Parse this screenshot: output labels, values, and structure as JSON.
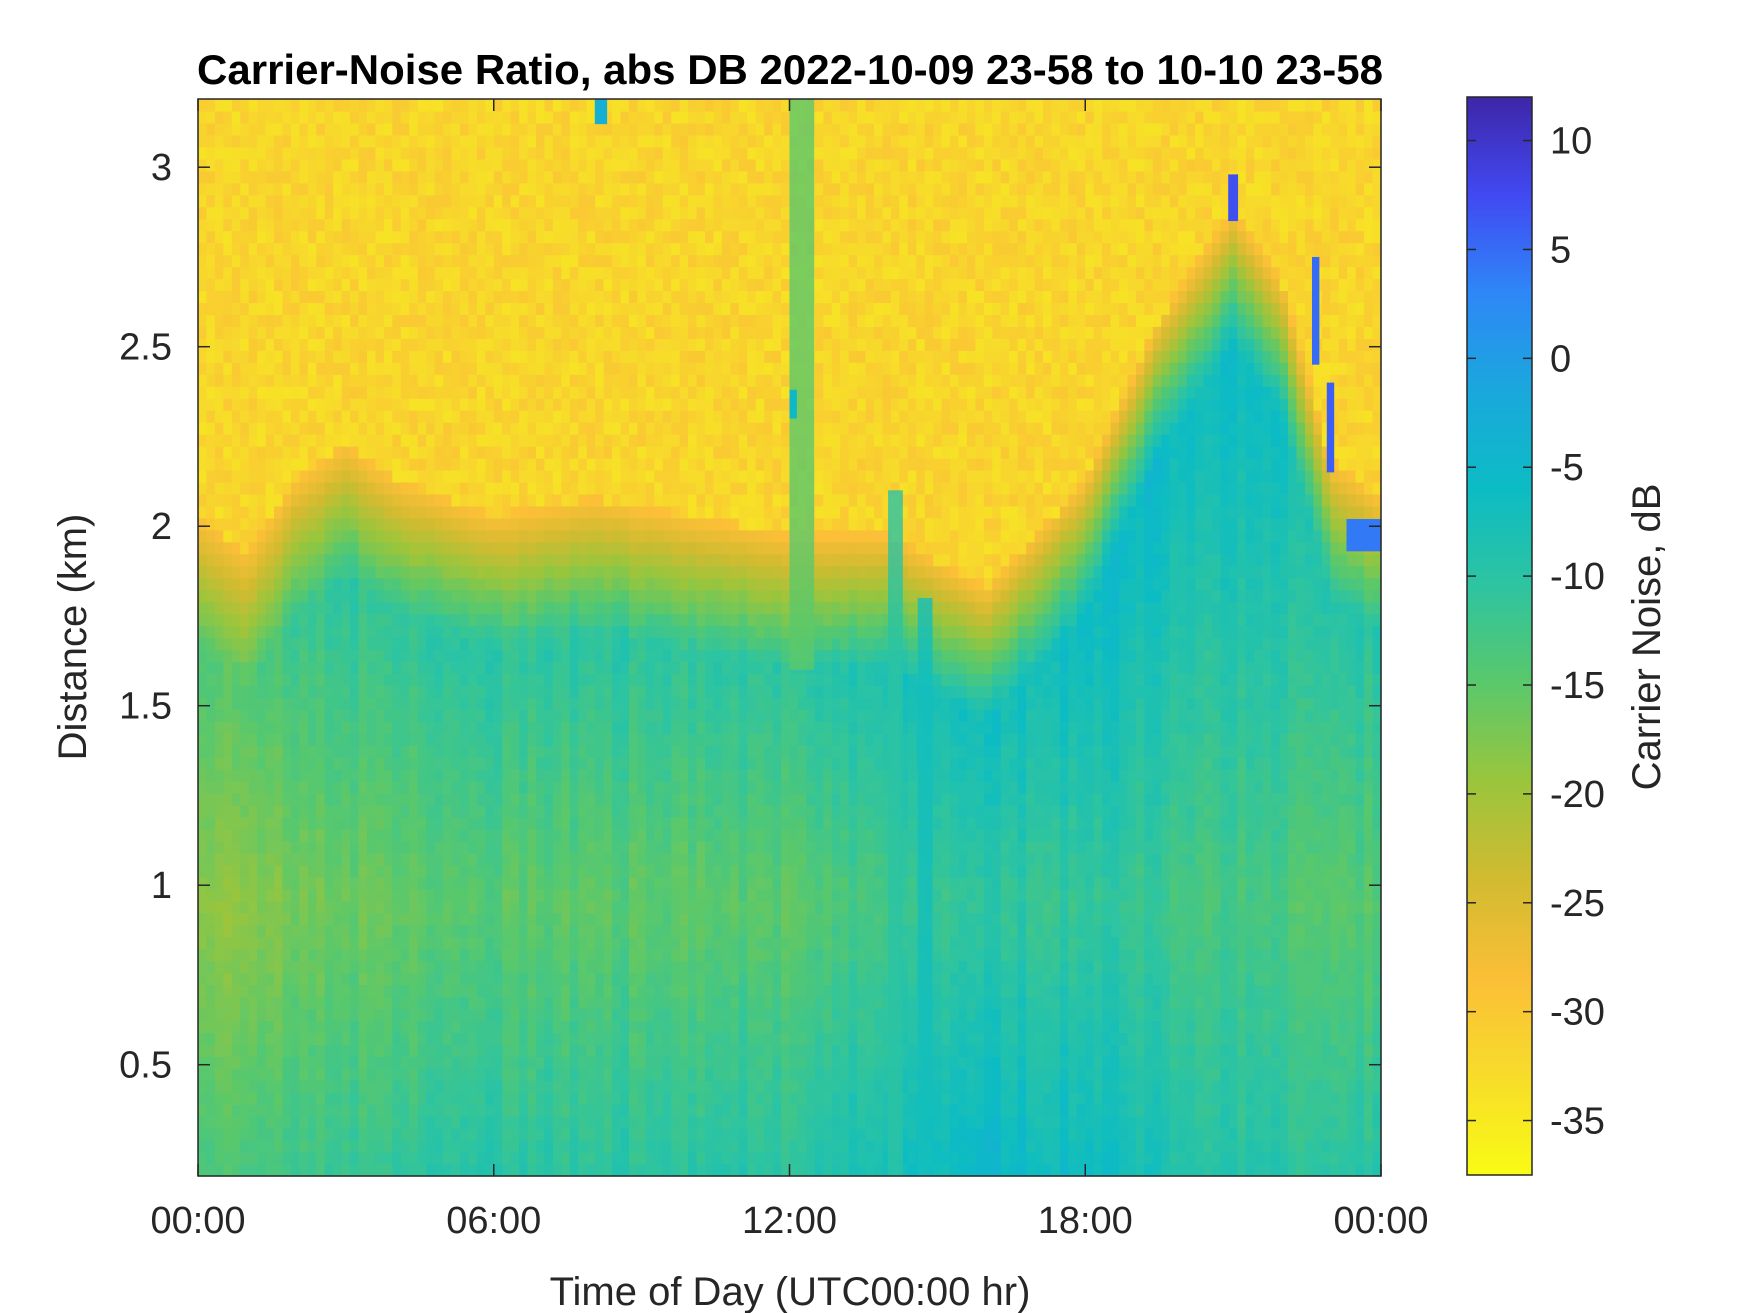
{
  "chart_data": {
    "type": "heatmap",
    "title": "Carrier-Noise Ratio, abs DB 2022-10-09 23-58 to 10-10 23-58",
    "xlabel": "Time of Day (UTC00:00 hr)",
    "ylabel": "Distance (km)",
    "colorbar_label": "Carrier Noise, dB",
    "xlim_hours": [
      0,
      24
    ],
    "ylim_km": [
      0.19,
      3.19
    ],
    "clim_db": [
      -37.5,
      12
    ],
    "x_ticks": [
      {
        "value": 0,
        "label": "00:00"
      },
      {
        "value": 6,
        "label": "06:00"
      },
      {
        "value": 12,
        "label": "12:00"
      },
      {
        "value": 18,
        "label": "18:00"
      },
      {
        "value": 24,
        "label": "00:00"
      }
    ],
    "y_ticks": [
      {
        "value": 0.5,
        "label": "0.5"
      },
      {
        "value": 1,
        "label": "1"
      },
      {
        "value": 1.5,
        "label": "1.5"
      },
      {
        "value": 2,
        "label": "2"
      },
      {
        "value": 2.5,
        "label": "2.5"
      },
      {
        "value": 3,
        "label": "3"
      }
    ],
    "colorbar_ticks": [
      {
        "value": 10,
        "label": "10"
      },
      {
        "value": 5,
        "label": "5"
      },
      {
        "value": 0,
        "label": "0"
      },
      {
        "value": -5,
        "label": "-5"
      },
      {
        "value": -10,
        "label": "-10"
      },
      {
        "value": -15,
        "label": "-15"
      },
      {
        "value": -20,
        "label": "-20"
      },
      {
        "value": -25,
        "label": "-25"
      },
      {
        "value": -30,
        "label": "-30"
      },
      {
        "value": -35,
        "label": "-35"
      }
    ],
    "colormap": [
      "#3e26a8",
      "#4149f2",
      "#2e87f7",
      "#1aa8dc",
      "#0cbcc4",
      "#2ec4a0",
      "#5bc86a",
      "#9bc53c",
      "#d2bb30",
      "#fbbf37",
      "#f7dc2a",
      "#f9fb15"
    ],
    "noise_floor_db": -32,
    "noise_floor_top_km": [
      {
        "t": 0,
        "km": 1.95
      },
      {
        "t": 1,
        "km": 1.85
      },
      {
        "t": 2,
        "km": 2.05
      },
      {
        "t": 3,
        "km": 2.15
      },
      {
        "t": 4,
        "km": 2.05
      },
      {
        "t": 6,
        "km": 1.95
      },
      {
        "t": 8,
        "km": 2.0
      },
      {
        "t": 10,
        "km": 1.95
      },
      {
        "t": 12,
        "km": 1.9
      },
      {
        "t": 14,
        "km": 1.9
      },
      {
        "t": 16,
        "km": 1.75
      },
      {
        "t": 17,
        "km": 1.9
      },
      {
        "t": 18,
        "km": 2.05
      },
      {
        "t": 19.5,
        "km": 2.5
      },
      {
        "t": 21,
        "km": 2.8
      },
      {
        "t": 22,
        "km": 2.6
      },
      {
        "t": 23,
        "km": 2.1
      },
      {
        "t": 24,
        "km": 2.0
      }
    ],
    "boundary_layer_min_db": [
      {
        "t": 0,
        "db": -19
      },
      {
        "t": 3,
        "db": -16
      },
      {
        "t": 6,
        "db": -15
      },
      {
        "t": 9,
        "db": -15
      },
      {
        "t": 12,
        "db": -15
      },
      {
        "t": 14,
        "db": -13
      },
      {
        "t": 16,
        "db": -11
      },
      {
        "t": 18,
        "db": -11
      },
      {
        "t": 21,
        "db": -13
      },
      {
        "t": 24,
        "db": -15
      }
    ],
    "features": [
      {
        "name": "clear-air plume",
        "t0": 12.0,
        "t1": 12.5,
        "km0": 1.6,
        "km1": 3.19,
        "db": -15
      },
      {
        "name": "clear-air streak",
        "t0": 14.0,
        "t1": 14.3,
        "km0": 0.19,
        "km1": 2.1,
        "db": -10
      },
      {
        "name": "clear-air streak",
        "t0": 14.6,
        "t1": 14.9,
        "km0": 0.19,
        "km1": 1.8,
        "db": -7
      },
      {
        "name": "echo",
        "t0": 12.0,
        "t1": 12.15,
        "km0": 2.3,
        "km1": 2.38,
        "db": -5
      },
      {
        "name": "echo",
        "t0": 8.05,
        "t1": 8.3,
        "km0": 3.12,
        "km1": 3.19,
        "db": -3
      },
      {
        "name": "echo",
        "t0": 20.9,
        "t1": 21.1,
        "km0": 2.85,
        "km1": 2.98,
        "db": 7
      },
      {
        "name": "echo",
        "t0": 22.6,
        "t1": 22.75,
        "km0": 2.45,
        "km1": 2.75,
        "db": 5
      },
      {
        "name": "echo",
        "t0": 22.9,
        "t1": 23.05,
        "km0": 2.15,
        "km1": 2.4,
        "db": 6
      },
      {
        "name": "echo",
        "t0": 23.3,
        "t1": 24,
        "km0": 1.93,
        "km1": 2.02,
        "db": 4
      }
    ]
  }
}
